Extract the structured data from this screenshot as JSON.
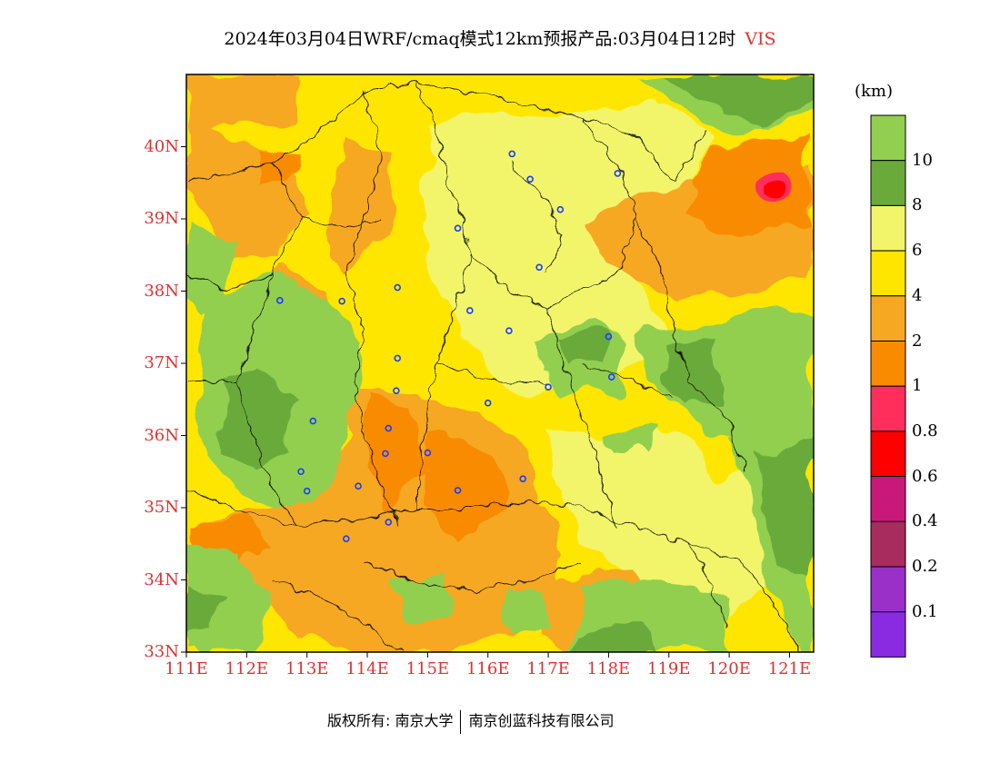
{
  "title": {
    "main": "2024年03月04日WRF/cmaq模式12km预报产品:03月04日12时",
    "variable": "VIS"
  },
  "axes": {
    "lat_labels": [
      "40N",
      "39N",
      "38N",
      "37N",
      "36N",
      "35N",
      "34N",
      "33N"
    ],
    "lon_labels": [
      "111E",
      "112E",
      "113E",
      "114E",
      "115E",
      "116E",
      "117E",
      "118E",
      "119E",
      "120E",
      "121E"
    ]
  },
  "map_extent": {
    "lon_min": 111,
    "lon_max": 121.4,
    "lat_min": 33,
    "lat_max": 41
  },
  "colorbar": {
    "unit": "(km)",
    "labels": [
      "10",
      "8",
      "6",
      "4",
      "2",
      "1",
      "0.8",
      "0.6",
      "0.4",
      "0.2",
      "0.1"
    ],
    "colors": [
      "#92cf50",
      "#6aaa3a",
      "#f2f56a",
      "#ffe600",
      "#f6a823",
      "#f98b00",
      "#ff2e5a",
      "#ff0000",
      "#c8187a",
      "#a82c5e",
      "#9a30c8",
      "#8a2be2"
    ]
  },
  "footer": {
    "copyright": "版权所有: 南京大学",
    "company": "南京创蓝科技有限公司"
  },
  "stations": [
    [
      116.4,
      39.9
    ],
    [
      116.7,
      39.55
    ],
    [
      117.2,
      39.13
    ],
    [
      118.15,
      39.63
    ],
    [
      115.5,
      38.87
    ],
    [
      116.85,
      38.33
    ],
    [
      112.55,
      37.87
    ],
    [
      113.58,
      37.86
    ],
    [
      114.5,
      38.05
    ],
    [
      115.7,
      37.73
    ],
    [
      116.35,
      37.45
    ],
    [
      118.0,
      37.37
    ],
    [
      114.5,
      37.07
    ],
    [
      114.48,
      36.62
    ],
    [
      118.05,
      36.81
    ],
    [
      117.0,
      36.67
    ],
    [
      116.0,
      36.45
    ],
    [
      113.1,
      36.2
    ],
    [
      114.35,
      36.1
    ],
    [
      114.3,
      35.75
    ],
    [
      115.0,
      35.76
    ],
    [
      112.9,
      35.5
    ],
    [
      113.0,
      35.23
    ],
    [
      113.85,
      35.3
    ],
    [
      115.5,
      35.24
    ],
    [
      116.58,
      35.4
    ],
    [
      114.35,
      34.8
    ],
    [
      113.65,
      34.57
    ]
  ]
}
